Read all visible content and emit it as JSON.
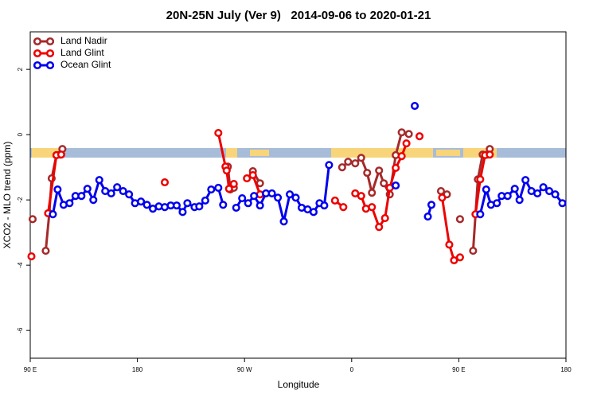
{
  "chart_data": {
    "type": "line",
    "title": "20N-25N July (Ver 9)   2014-09-06 to 2020-01-21",
    "x_label": "Longitude",
    "y_label": "XCO2 - MLO trend (ppm)",
    "xlim": [
      90,
      540
    ],
    "ylim": [
      -6.85,
      3.15
    ],
    "xticks": [
      {
        "value": 90,
        "label": "90 E"
      },
      {
        "value": 180,
        "label": "180"
      },
      {
        "value": 270,
        "label": "90 W"
      },
      {
        "value": 360,
        "label": "0"
      },
      {
        "value": 450,
        "label": "90 E"
      },
      {
        "value": 540,
        "label": "180"
      }
    ],
    "yticks": [
      -6,
      -4,
      -2,
      0,
      2
    ],
    "legend": "topleft",
    "series": [
      {
        "name": "Land Nadir",
        "color": "#a52a2a",
        "x": [
          92,
          null,
          103,
          106,
          108,
          112,
          115,
          117,
          null,
          256,
          258,
          261,
          null,
          277,
          283,
          null,
          352,
          357,
          363,
          368,
          373,
          377,
          383,
          387,
          392,
          397,
          402,
          408,
          null,
          435,
          440,
          null,
          451,
          null,
          462,
          466,
          470,
          474,
          476
        ],
        "values": [
          -2.59,
          null,
          -3.56,
          -2.41,
          -1.34,
          -0.63,
          -0.61,
          -0.44,
          null,
          -0.98,
          -1.68,
          -1.63,
          null,
          -1.12,
          -1.49,
          null,
          -1.0,
          -0.83,
          -0.88,
          -0.71,
          -1.17,
          -1.78,
          -1.1,
          -1.49,
          -1.83,
          -0.63,
          0.07,
          0.02,
          null,
          -1.73,
          -1.83,
          null,
          -2.59,
          null,
          -3.56,
          -1.37,
          -0.61,
          -0.61,
          -0.44
        ]
      },
      {
        "name": "Land Glint",
        "color": "#ee0000",
        "x": [
          91,
          null,
          105,
          112,
          116,
          null,
          203,
          null,
          248,
          254,
          255,
          257,
          261,
          null,
          272,
          277,
          283,
          null,
          346,
          353,
          null,
          363,
          368,
          372,
          377,
          383,
          388,
          392,
          397,
          402,
          406,
          null,
          417,
          null,
          436,
          442,
          446,
          451,
          null,
          464,
          468,
          472,
          476
        ],
        "values": [
          -3.73,
          null,
          -2.41,
          -0.63,
          -0.61,
          null,
          -1.46,
          null,
          0.05,
          -0.98,
          -1.1,
          -1.66,
          -1.51,
          null,
          -1.34,
          -1.24,
          -1.83,
          null,
          -2.02,
          -2.22,
          null,
          -1.8,
          -1.88,
          -2.27,
          -2.22,
          -2.83,
          -2.56,
          -1.63,
          -1.02,
          -0.66,
          -0.27,
          null,
          -0.05,
          null,
          -1.93,
          -3.37,
          -3.85,
          -3.76,
          null,
          -2.44,
          -1.37,
          -0.63,
          -0.61
        ]
      },
      {
        "name": "Ocean Glint",
        "color": "#0000ee",
        "x": [
          109,
          113,
          118,
          123,
          128,
          133,
          138,
          143,
          148,
          153,
          158,
          163,
          168,
          173,
          178,
          183,
          188,
          193,
          198,
          203,
          208,
          213,
          218,
          222,
          228,
          232,
          237,
          242,
          248,
          252,
          null,
          263,
          268,
          273,
          278,
          283,
          288,
          293,
          298,
          303,
          308,
          313,
          318,
          323,
          328,
          333,
          337,
          341,
          null,
          397,
          null,
          413,
          null,
          424,
          427,
          null,
          468,
          473,
          477,
          482,
          486,
          491,
          497,
          501,
          506,
          511,
          516,
          521,
          526,
          531,
          537
        ],
        "values": [
          -2.44,
          -1.68,
          -2.15,
          -2.1,
          -1.88,
          -1.88,
          -1.66,
          -2.0,
          -1.39,
          -1.73,
          -1.8,
          -1.61,
          -1.73,
          -1.83,
          -2.1,
          -2.05,
          -2.15,
          -2.27,
          -2.2,
          -2.22,
          -2.17,
          -2.17,
          -2.37,
          -2.1,
          -2.22,
          -2.2,
          -2.02,
          -1.68,
          -1.63,
          -2.15,
          null,
          -2.24,
          -1.95,
          -2.1,
          -1.88,
          -2.17,
          -1.8,
          -1.8,
          -1.93,
          -2.66,
          -1.83,
          -1.93,
          -2.24,
          -2.29,
          -2.37,
          -2.1,
          -2.17,
          -0.93,
          null,
          -1.56,
          null,
          0.88,
          null,
          -2.51,
          -2.15,
          null,
          -2.44,
          -1.68,
          -2.15,
          -2.1,
          -1.88,
          -1.88,
          -1.66,
          -2.0,
          -1.39,
          -1.73,
          -1.8,
          -1.61,
          -1.73,
          -1.83,
          -2.1
        ]
      }
    ]
  }
}
